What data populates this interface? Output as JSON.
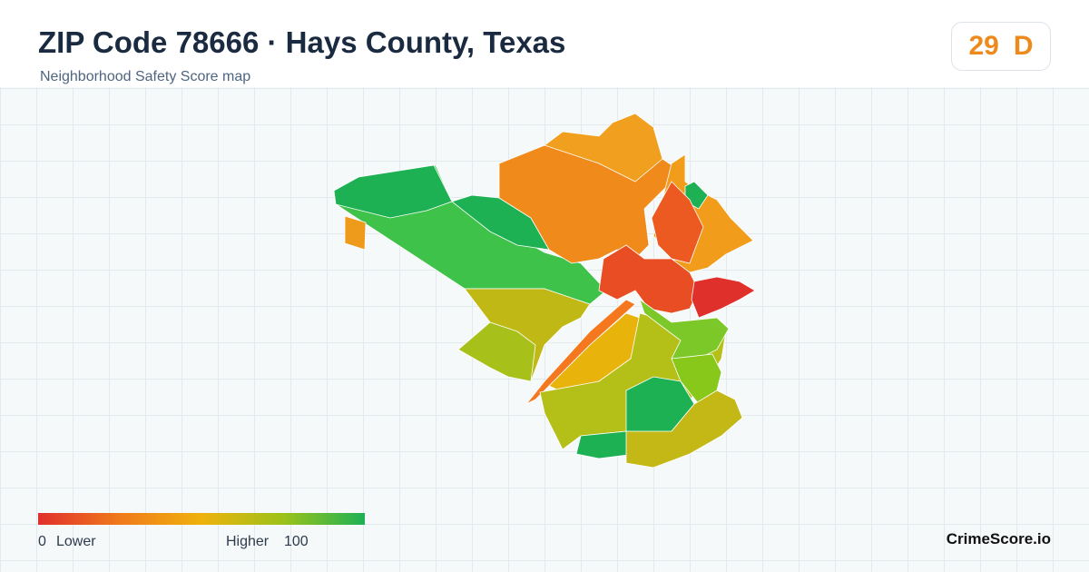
{
  "header": {
    "title": "ZIP Code 78666 · Hays County, Texas",
    "subtitle": "Neighborhood Safety Score map"
  },
  "score": {
    "value": "29",
    "grade": "D"
  },
  "legend": {
    "min": "0",
    "min_label": "Lower",
    "max_label": "Higher",
    "max": "100"
  },
  "brand": "CrimeScore.io"
}
